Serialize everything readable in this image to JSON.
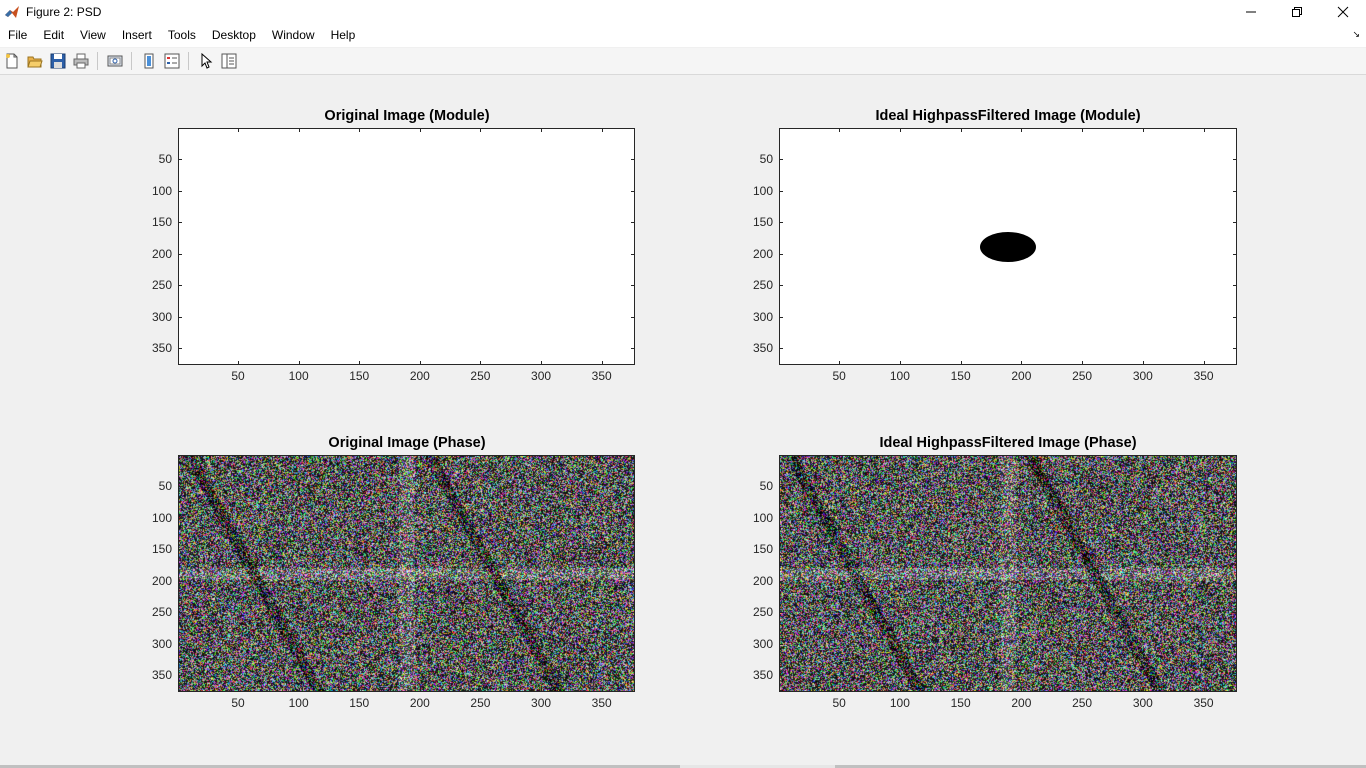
{
  "window": {
    "title": "Figure 2: PSD",
    "controls": [
      "minimize-icon",
      "restore-icon",
      "close-icon"
    ]
  },
  "menubar": {
    "items": [
      "File",
      "Edit",
      "View",
      "Insert",
      "Tools",
      "Desktop",
      "Window",
      "Help"
    ]
  },
  "toolbar": {
    "buttons": [
      "new-figure-icon",
      "open-file-icon",
      "save-icon",
      "print-icon",
      "link-plot-icon",
      "insert-colorbar-icon",
      "insert-legend-icon",
      "edit-plot-icon",
      "property-inspector-icon"
    ]
  },
  "figure": {
    "subplots": [
      {
        "title": "Original Image (Module)",
        "content": "blank-white",
        "x_ticks": [
          "50",
          "100",
          "150",
          "200",
          "250",
          "300",
          "350"
        ],
        "y_ticks": [
          "50",
          "100",
          "150",
          "200",
          "250",
          "300",
          "350"
        ]
      },
      {
        "title": "Ideal HighpassFiltered Image (Module)",
        "content": "white-with-black-ellipse",
        "x_ticks": [
          "50",
          "100",
          "150",
          "200",
          "250",
          "300",
          "350"
        ],
        "y_ticks": [
          "50",
          "100",
          "150",
          "200",
          "250",
          "300",
          "350"
        ]
      },
      {
        "title": "Original Image (Phase)",
        "content": "color-noise",
        "x_ticks": [
          "50",
          "100",
          "150",
          "200",
          "250",
          "300",
          "350"
        ],
        "y_ticks": [
          "50",
          "100",
          "150",
          "200",
          "250",
          "300",
          "350"
        ]
      },
      {
        "title": "Ideal HighpassFiltered Image (Phase)",
        "content": "color-noise",
        "x_ticks": [
          "50",
          "100",
          "150",
          "200",
          "250",
          "300",
          "350"
        ],
        "y_ticks": [
          "50",
          "100",
          "150",
          "200",
          "250",
          "300",
          "350"
        ]
      }
    ]
  },
  "colors": {
    "figure_background": "#f0f0f0",
    "axes_background": "#ffffff",
    "axes_border": "#262626"
  }
}
